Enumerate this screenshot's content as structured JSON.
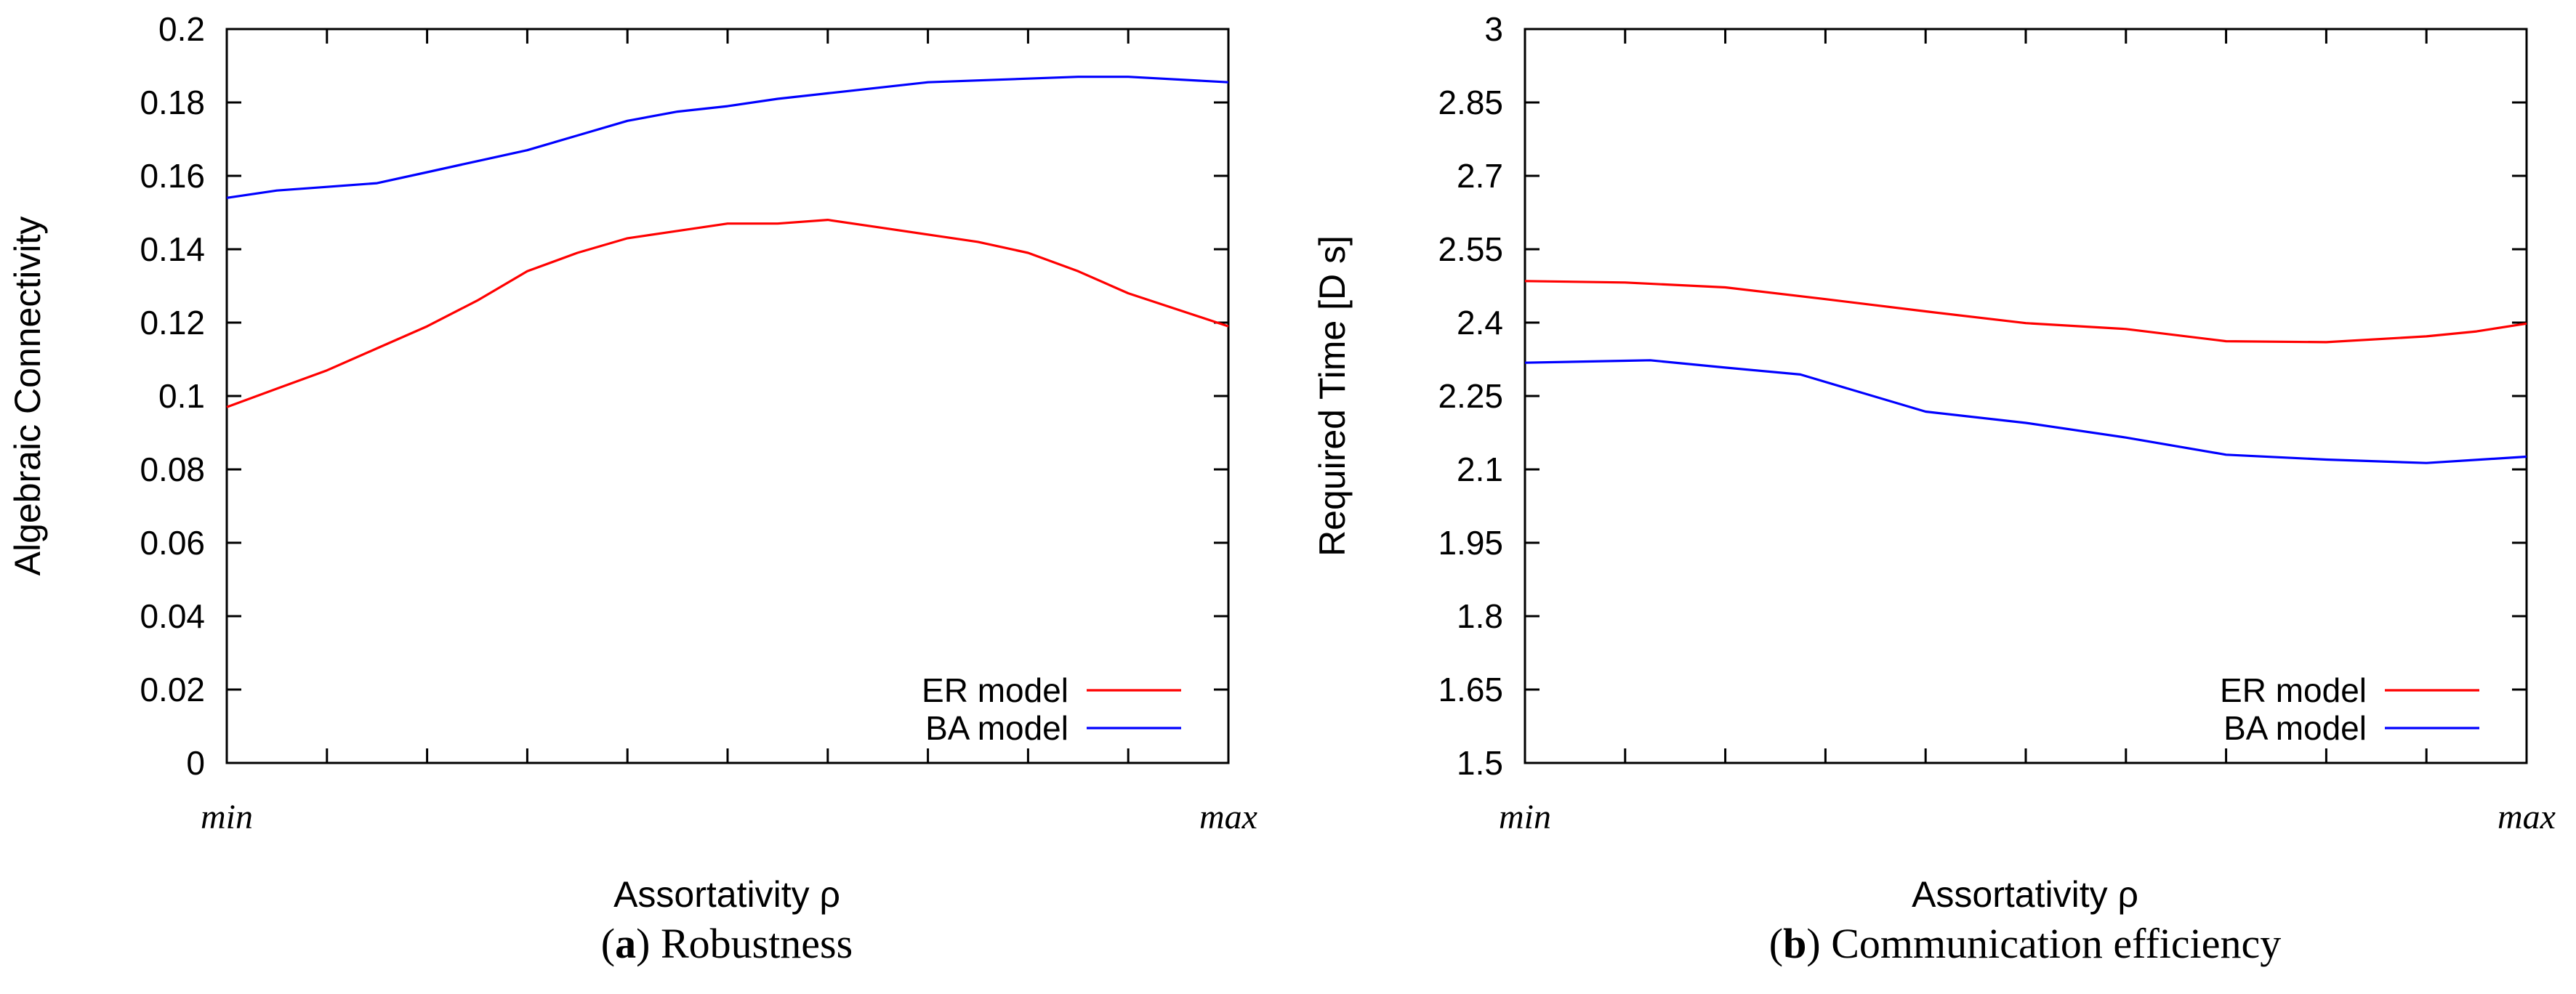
{
  "chart_data": [
    {
      "type": "line",
      "panel_letter": "a",
      "caption": "Robustness",
      "xlabel": "Assortativity ρ",
      "ylabel": "Algebraic Connectivity",
      "x_tick_labels": [
        "min",
        "max"
      ],
      "xlim": [
        0,
        10
      ],
      "ylim": [
        0,
        0.2
      ],
      "y_ticks": [
        "0",
        "0.02",
        "0.04",
        "0.06",
        "0.08",
        "0.1",
        "0.12",
        "0.14",
        "0.16",
        "0.18",
        "0.2"
      ],
      "grid": false,
      "legend_position": "bottom-right",
      "series": [
        {
          "name": "ER model",
          "color": "#ff0000",
          "x": [
            0,
            0.5,
            1,
            1.5,
            2,
            2.5,
            3,
            3.5,
            4,
            4.5,
            5,
            5.5,
            6,
            6.5,
            7,
            7.5,
            8,
            8.5,
            9,
            10
          ],
          "values": [
            0.097,
            0.102,
            0.107,
            0.113,
            0.119,
            0.126,
            0.134,
            0.139,
            0.143,
            0.145,
            0.147,
            0.147,
            0.148,
            0.146,
            0.144,
            0.142,
            0.139,
            0.134,
            0.128,
            0.119
          ]
        },
        {
          "name": "BA model",
          "color": "#0000ff",
          "x": [
            0,
            0.5,
            1,
            1.5,
            2,
            2.5,
            3,
            3.5,
            4,
            4.5,
            5,
            5.5,
            6,
            6.5,
            7,
            7.5,
            8,
            8.5,
            9,
            10
          ],
          "values": [
            0.154,
            0.156,
            0.157,
            0.158,
            0.161,
            0.164,
            0.167,
            0.171,
            0.175,
            0.1775,
            0.179,
            0.181,
            0.1825,
            0.184,
            0.1855,
            0.186,
            0.1865,
            0.187,
            0.187,
            0.1855
          ]
        }
      ]
    },
    {
      "type": "line",
      "panel_letter": "b",
      "caption": "Communication efficiency",
      "xlabel": "Assortativity ρ",
      "ylabel": "Required Time [D s]",
      "x_tick_labels": [
        "min",
        "max"
      ],
      "xlim": [
        0,
        10
      ],
      "ylim": [
        1.5,
        3
      ],
      "y_ticks": [
        "1.5",
        "1.65",
        "1.8",
        "1.95",
        "2.1",
        "2.25",
        "2.4",
        "2.55",
        "2.7",
        "2.85",
        "3"
      ],
      "grid": false,
      "legend_position": "bottom-right",
      "series": [
        {
          "name": "ER model",
          "color": "#ff0000",
          "x": [
            0,
            1,
            2,
            3,
            4,
            5,
            6,
            7,
            8,
            9,
            9.5,
            10
          ],
          "values": [
            2.485,
            2.482,
            2.472,
            2.448,
            2.423,
            2.399,
            2.387,
            2.362,
            2.36,
            2.372,
            2.382,
            2.398
          ]
        },
        {
          "name": "BA model",
          "color": "#0000ff",
          "x": [
            0,
            1,
            1.25,
            2,
            2.75,
            4,
            5,
            6,
            7,
            8,
            9,
            10
          ],
          "values": [
            2.318,
            2.322,
            2.323,
            2.308,
            2.294,
            2.218,
            2.195,
            2.165,
            2.13,
            2.12,
            2.113,
            2.126
          ]
        }
      ]
    }
  ]
}
